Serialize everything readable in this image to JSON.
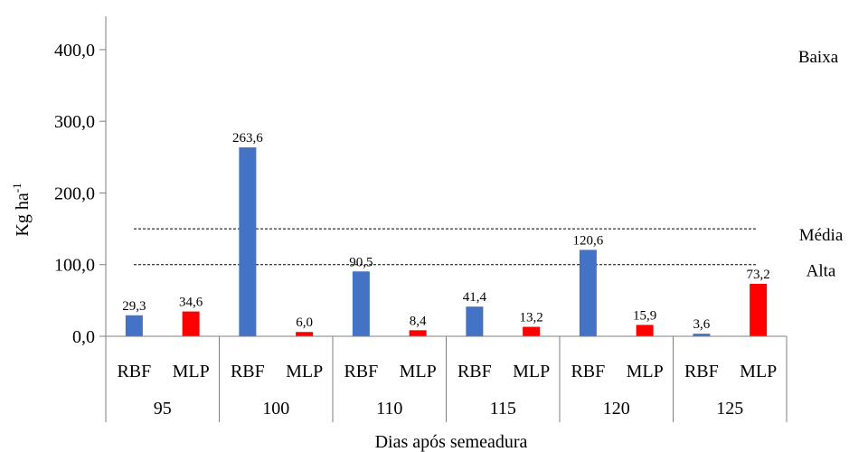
{
  "chart_data": {
    "type": "bar",
    "xlabel": "Dias após semeadura",
    "ylabel": "Kg ha",
    "ylabel_sup": "-1",
    "ylim": [
      0,
      450
    ],
    "yticks": [
      0,
      100,
      200,
      300,
      400
    ],
    "ytick_labels": [
      "0,0",
      "100,0",
      "200,0",
      "300,0",
      "400,0"
    ],
    "groups": [
      {
        "label": "95",
        "bars": [
          {
            "name": "RBF",
            "value": 29.3,
            "label": "29,3"
          },
          {
            "name": "MLP",
            "value": 34.6,
            "label": "34,6"
          }
        ]
      },
      {
        "label": "100",
        "bars": [
          {
            "name": "RBF",
            "value": 263.6,
            "label": "263,6"
          },
          {
            "name": "MLP",
            "value": 6.0,
            "label": "6,0"
          }
        ]
      },
      {
        "label": "110",
        "bars": [
          {
            "name": "RBF",
            "value": 90.5,
            "label": "90,5"
          },
          {
            "name": "MLP",
            "value": 8.4,
            "label": "8,4"
          }
        ]
      },
      {
        "label": "115",
        "bars": [
          {
            "name": "RBF",
            "value": 41.4,
            "label": "41,4"
          },
          {
            "name": "MLP",
            "value": 13.2,
            "label": "13,2"
          }
        ]
      },
      {
        "label": "120",
        "bars": [
          {
            "name": "RBF",
            "value": 120.6,
            "label": "120,6"
          },
          {
            "name": "MLP",
            "value": 15.9,
            "label": "15,9"
          }
        ]
      },
      {
        "label": "125",
        "bars": [
          {
            "name": "RBF",
            "value": 3.6,
            "label": "3,6"
          },
          {
            "name": "MLP",
            "value": 73.2,
            "label": "73,2"
          }
        ]
      }
    ],
    "series_colors": {
      "RBF": "#4472C4",
      "MLP": "#FF0000"
    },
    "reference_lines": [
      {
        "label": "Média",
        "value": 150
      },
      {
        "label": "Alta",
        "value": 100
      }
    ],
    "annotations": [
      {
        "label": "Baixa"
      }
    ],
    "grid": false
  }
}
